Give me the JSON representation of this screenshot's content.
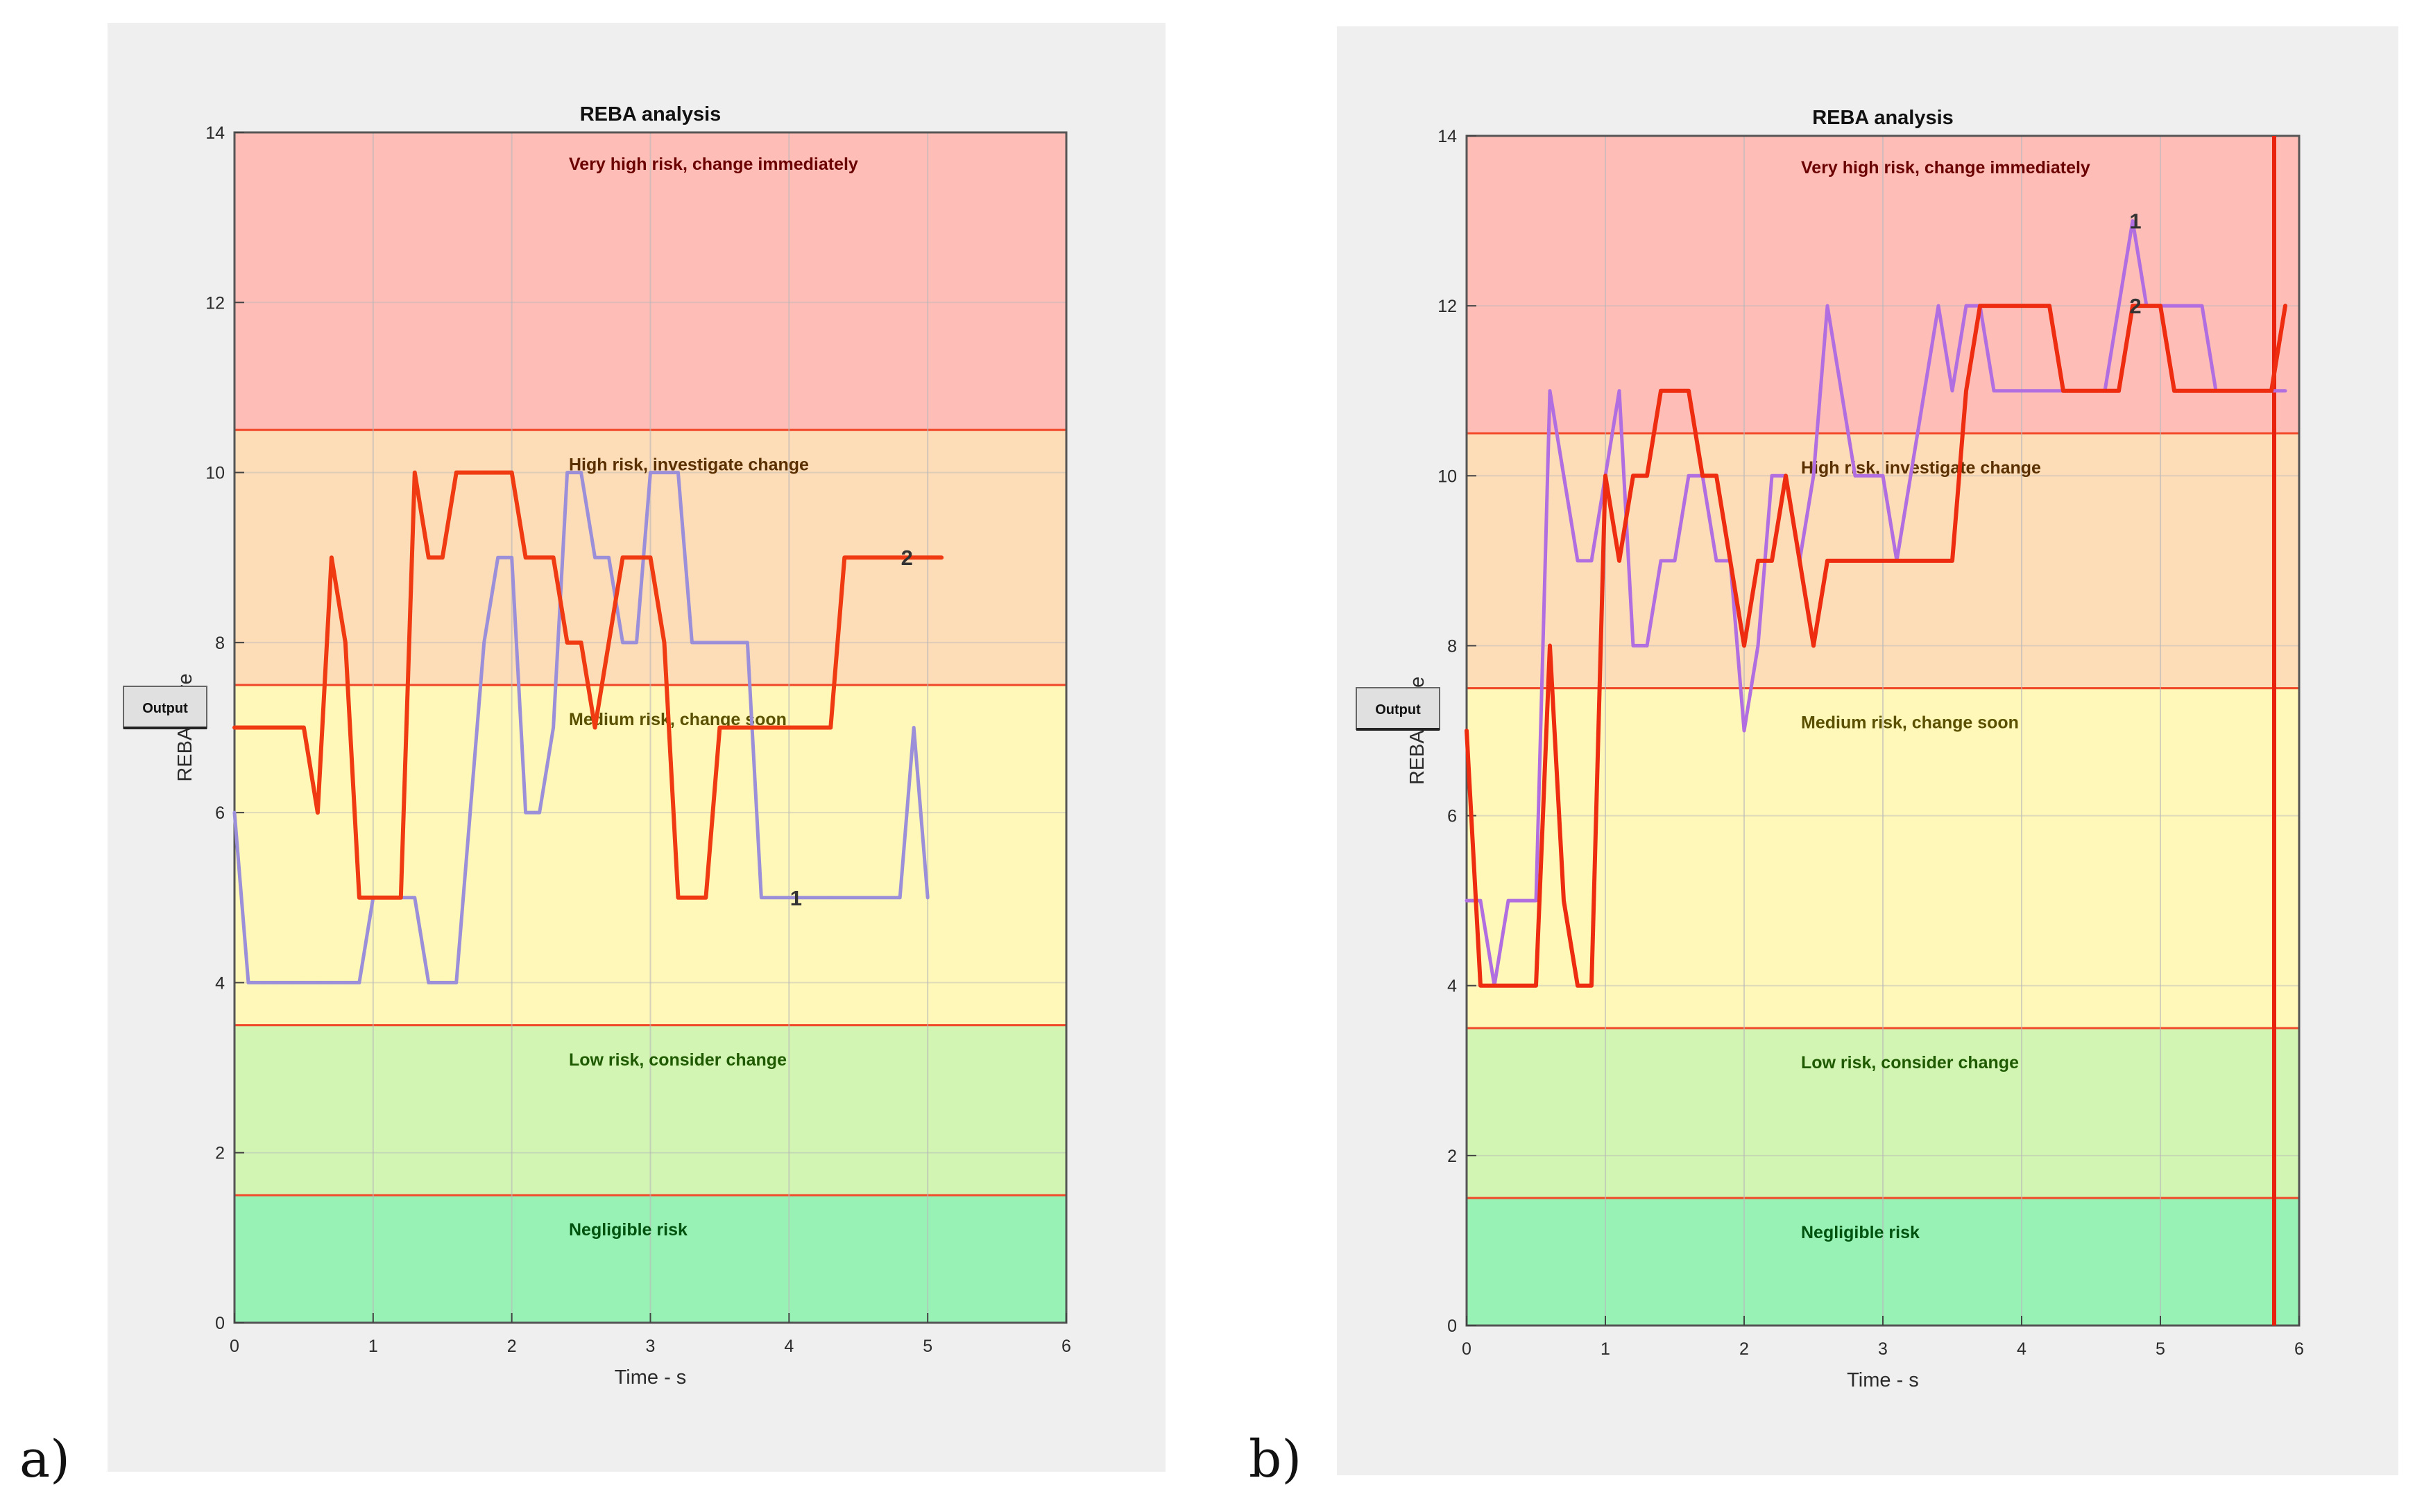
{
  "panels": [
    {
      "tag": "a)",
      "output_button": "Output",
      "chart_data": {
        "type": "line",
        "title": "REBA analysis",
        "xlabel": "Time - s",
        "ylabel": "REBA score",
        "xlim": [
          0,
          6
        ],
        "ylim": [
          0,
          14
        ],
        "xticks": [
          0,
          1,
          2,
          3,
          4,
          5,
          6
        ],
        "yticks": [
          0,
          2,
          4,
          6,
          8,
          10,
          12,
          14
        ],
        "zones": [
          {
            "name": "Very high risk, change immediately",
            "from": 10.5,
            "to": 14,
            "fill": "#ffbdb8",
            "text_color": "#6a0000"
          },
          {
            "name": "High risk, investigate change",
            "from": 7.5,
            "to": 10.5,
            "fill": "#fddcb8",
            "text_color": "#5a3000"
          },
          {
            "name": "Medium risk, change soon",
            "from": 3.5,
            "to": 7.5,
            "fill": "#fff8b8",
            "text_color": "#5a5000"
          },
          {
            "name": "Low risk, consider change",
            "from": 1.5,
            "to": 3.5,
            "fill": "#d2f5b3",
            "text_color": "#1f5a00"
          },
          {
            "name": "Negligible risk",
            "from": 0,
            "to": 1.5,
            "fill": "#98f2b6",
            "text_color": "#00520f"
          }
        ],
        "series": [
          {
            "name": "1",
            "color": "#9b8fd9",
            "label_at": [
              4.05,
              5
            ],
            "x": [
              0,
              0.1,
              0.2,
              0.3,
              0.4,
              0.5,
              0.6,
              0.7,
              0.8,
              0.9,
              1.0,
              1.1,
              1.2,
              1.3,
              1.4,
              1.5,
              1.6,
              1.7,
              1.8,
              1.9,
              2.0,
              2.1,
              2.2,
              2.3,
              2.4,
              2.5,
              2.6,
              2.7,
              2.8,
              2.9,
              3.0,
              3.1,
              3.2,
              3.3,
              3.4,
              3.5,
              3.6,
              3.7,
              3.8,
              3.9,
              4.0,
              4.1,
              4.2,
              4.3,
              4.4,
              4.5,
              4.6,
              4.7,
              4.8,
              4.9,
              5.0
            ],
            "values": [
              6,
              4,
              4,
              4,
              4,
              4,
              4,
              4,
              4,
              4,
              5,
              5,
              5,
              5,
              4,
              4,
              4,
              6,
              8,
              9,
              9,
              6,
              6,
              7,
              10,
              10,
              9,
              9,
              8,
              8,
              10,
              10,
              10,
              8,
              8,
              8,
              8,
              8,
              5,
              5,
              5,
              5,
              5,
              5,
              5,
              5,
              5,
              5,
              5,
              7,
              5
            ]
          },
          {
            "name": "2",
            "color": "#f03a12",
            "label_at": [
              4.85,
              9
            ],
            "x": [
              0,
              0.1,
              0.2,
              0.3,
              0.4,
              0.5,
              0.6,
              0.7,
              0.8,
              0.9,
              1.0,
              1.1,
              1.2,
              1.3,
              1.4,
              1.5,
              1.6,
              1.7,
              1.8,
              1.9,
              2.0,
              2.1,
              2.2,
              2.3,
              2.4,
              2.5,
              2.6,
              2.7,
              2.8,
              2.9,
              3.0,
              3.1,
              3.2,
              3.3,
              3.4,
              3.5,
              3.6,
              3.7,
              3.8,
              3.9,
              4.0,
              4.1,
              4.2,
              4.3,
              4.4,
              4.5,
              4.6,
              4.7,
              4.8,
              4.9,
              5.0,
              5.1
            ],
            "values": [
              7,
              7,
              7,
              7,
              7,
              7,
              6,
              9,
              8,
              5,
              5,
              5,
              5,
              10,
              9,
              9,
              10,
              10,
              10,
              10,
              10,
              9,
              9,
              9,
              8,
              8,
              7,
              8,
              9,
              9,
              9,
              8,
              5,
              5,
              5,
              7,
              7,
              7,
              7,
              7,
              7,
              7,
              7,
              7,
              9,
              9,
              9,
              9,
              9,
              9,
              9,
              9
            ]
          }
        ]
      }
    },
    {
      "tag": "b)",
      "output_button": "Output",
      "chart_data": {
        "type": "line",
        "title": "REBA analysis",
        "xlabel": "Time - s",
        "ylabel": "REBA score",
        "xlim": [
          0,
          6
        ],
        "ylim": [
          0,
          14
        ],
        "xticks": [
          0,
          1,
          2,
          3,
          4,
          5,
          6
        ],
        "yticks": [
          0,
          2,
          4,
          6,
          8,
          10,
          12,
          14
        ],
        "cursor_x": 5.82,
        "zones": [
          {
            "name": "Very high risk, change immediately",
            "from": 10.5,
            "to": 14,
            "fill": "#ffbdb8",
            "text_color": "#6a0000"
          },
          {
            "name": "High risk, investigate change",
            "from": 7.5,
            "to": 10.5,
            "fill": "#fddcb8",
            "text_color": "#5a3000"
          },
          {
            "name": "Medium risk, change soon",
            "from": 3.5,
            "to": 7.5,
            "fill": "#fff8b8",
            "text_color": "#5a5000"
          },
          {
            "name": "Low risk, consider change",
            "from": 1.5,
            "to": 3.5,
            "fill": "#d2f5b3",
            "text_color": "#1f5a00"
          },
          {
            "name": "Negligible risk",
            "from": 0,
            "to": 1.5,
            "fill": "#98f2b6",
            "text_color": "#00520f"
          }
        ],
        "series": [
          {
            "name": "1",
            "color": "#b06ee0",
            "label_at": [
              4.82,
              13
            ],
            "x": [
              0,
              0.1,
              0.2,
              0.3,
              0.4,
              0.5,
              0.6,
              0.7,
              0.8,
              0.9,
              1.0,
              1.1,
              1.2,
              1.3,
              1.4,
              1.5,
              1.6,
              1.7,
              1.8,
              1.9,
              2.0,
              2.1,
              2.2,
              2.3,
              2.4,
              2.5,
              2.6,
              2.7,
              2.8,
              2.9,
              3.0,
              3.1,
              3.2,
              3.3,
              3.4,
              3.5,
              3.6,
              3.7,
              3.8,
              3.9,
              4.0,
              4.1,
              4.2,
              4.3,
              4.4,
              4.5,
              4.6,
              4.7,
              4.8,
              4.9,
              5.0,
              5.1,
              5.2,
              5.3,
              5.4,
              5.5,
              5.6,
              5.7,
              5.8,
              5.9
            ],
            "values": [
              5,
              5,
              4,
              5,
              5,
              5,
              11,
              10,
              9,
              9,
              10,
              11,
              8,
              8,
              9,
              9,
              10,
              10,
              9,
              9,
              7,
              8,
              10,
              10,
              9,
              10,
              12,
              11,
              10,
              10,
              10,
              9,
              10,
              11,
              12,
              11,
              12,
              12,
              11,
              11,
              11,
              11,
              11,
              11,
              11,
              11,
              11,
              12,
              13,
              12,
              12,
              12,
              12,
              12,
              11,
              11,
              11,
              11,
              11,
              11
            ]
          },
          {
            "name": "2",
            "color": "#ee2c10",
            "label_at": [
              4.82,
              12
            ],
            "x": [
              0,
              0.1,
              0.2,
              0.3,
              0.4,
              0.5,
              0.6,
              0.7,
              0.8,
              0.9,
              1.0,
              1.1,
              1.2,
              1.3,
              1.4,
              1.5,
              1.6,
              1.7,
              1.8,
              1.9,
              2.0,
              2.1,
              2.2,
              2.3,
              2.4,
              2.5,
              2.6,
              2.7,
              2.8,
              2.9,
              3.0,
              3.1,
              3.2,
              3.3,
              3.4,
              3.5,
              3.6,
              3.7,
              3.8,
              3.9,
              4.0,
              4.1,
              4.2,
              4.3,
              4.4,
              4.5,
              4.6,
              4.7,
              4.8,
              4.9,
              5.0,
              5.1,
              5.2,
              5.3,
              5.4,
              5.5,
              5.6,
              5.7,
              5.8,
              5.9
            ],
            "values": [
              7,
              4,
              4,
              4,
              4,
              4,
              8,
              5,
              4,
              4,
              10,
              9,
              10,
              10,
              11,
              11,
              11,
              10,
              10,
              9,
              8,
              9,
              9,
              10,
              9,
              8,
              9,
              9,
              9,
              9,
              9,
              9,
              9,
              9,
              9,
              9,
              11,
              12,
              12,
              12,
              12,
              12,
              12,
              11,
              11,
              11,
              11,
              11,
              12,
              12,
              12,
              11,
              11,
              11,
              11,
              11,
              11,
              11,
              11,
              12
            ]
          }
        ]
      }
    }
  ]
}
